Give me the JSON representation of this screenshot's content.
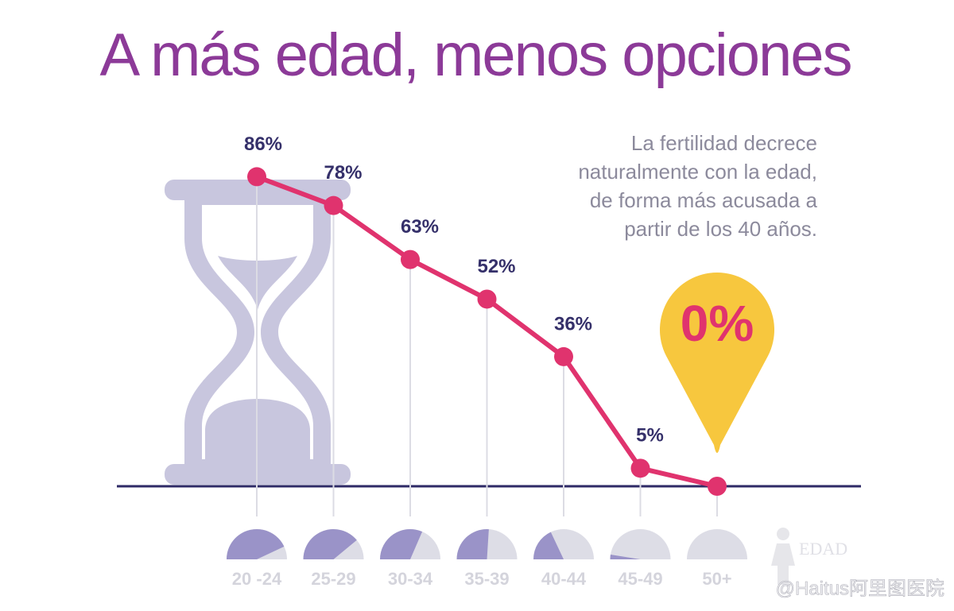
{
  "chart_data": {
    "type": "line",
    "title": "A más edad, menos opciones",
    "annotation": [
      "La fertilidad decrece",
      "naturalmente con la edad,",
      "de forma más acusada a",
      "partir de los 40 años."
    ],
    "x_label": "EDAD",
    "watermark": "@Haitus阿里图医院",
    "categories": [
      "20 -24",
      "25-29",
      "30-34",
      "35-39",
      "40-44",
      "45-49",
      "50+"
    ],
    "values": [
      86,
      78,
      63,
      52,
      36,
      5,
      0
    ],
    "value_labels": [
      "86%",
      "78%",
      "63%",
      "52%",
      "36%",
      "5%",
      "0%"
    ],
    "color": "#e0336e",
    "ylim": [
      0,
      100
    ]
  }
}
